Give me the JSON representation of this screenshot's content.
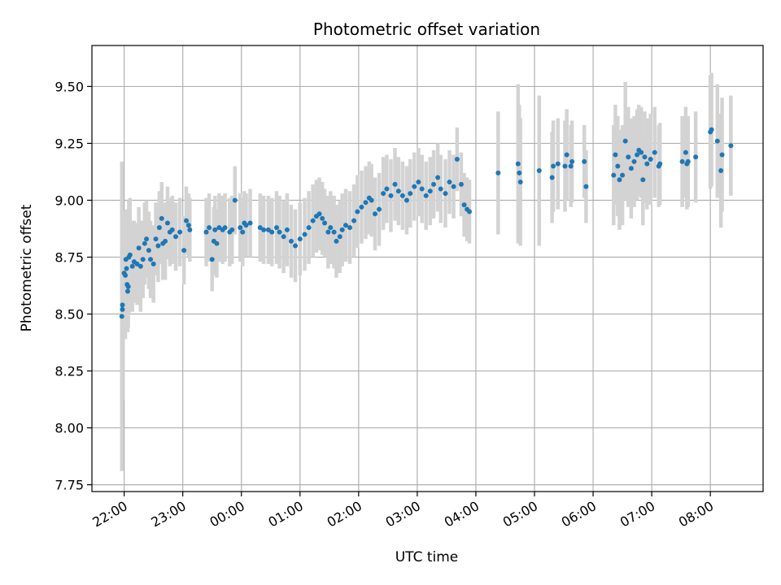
{
  "chart_data": {
    "type": "scatter",
    "title": "Photometric offset variation",
    "xlabel": "UTC time",
    "ylabel": "Photometric offset",
    "x_unit": "hours relative to 00:00 UTC",
    "xlim": [
      -2.55,
      8.9
    ],
    "ylim": [
      7.72,
      9.68
    ],
    "x_ticks": [
      -2,
      -1,
      0,
      1,
      2,
      3,
      4,
      5,
      6,
      7,
      8
    ],
    "x_tick_labels": [
      "22:00",
      "23:00",
      "00:00",
      "01:00",
      "02:00",
      "03:00",
      "04:00",
      "05:00",
      "06:00",
      "07:00",
      "08:00"
    ],
    "y_ticks": [
      7.75,
      8.0,
      8.25,
      8.5,
      8.75,
      9.0,
      9.25,
      9.5
    ],
    "y_tick_labels": [
      "7.75",
      "8.00",
      "8.25",
      "8.50",
      "8.75",
      "9.00",
      "9.25",
      "9.50"
    ],
    "grid": true,
    "colors": {
      "points": "#1f77b4",
      "error_bars": "#d3d3d3",
      "grid": "#b0b0b0"
    },
    "series": [
      {
        "points": [
          [
            -2.04,
            8.49,
            0.68
          ],
          [
            -2.03,
            8.52,
            0.4
          ],
          [
            -2.03,
            8.54,
            0.3
          ],
          [
            -2.0,
            8.68,
            0.25
          ],
          [
            -1.98,
            8.67,
            0.28
          ],
          [
            -1.97,
            8.74,
            0.22
          ],
          [
            -1.96,
            8.7,
            0.25
          ],
          [
            -1.95,
            8.63,
            0.2
          ],
          [
            -1.94,
            8.6,
            0.18
          ],
          [
            -1.93,
            8.62,
            0.18
          ],
          [
            -1.92,
            8.75,
            0.25
          ],
          [
            -1.9,
            8.76,
            0.25
          ],
          [
            -1.86,
            8.71,
            0.2
          ],
          [
            -1.83,
            8.73,
            0.18
          ],
          [
            -1.78,
            8.72,
            0.18
          ],
          [
            -1.75,
            8.79,
            0.18
          ],
          [
            -1.72,
            8.71,
            0.2
          ],
          [
            -1.68,
            8.74,
            0.17
          ],
          [
            -1.65,
            8.81,
            0.18
          ],
          [
            -1.62,
            8.83,
            0.17
          ],
          [
            -1.58,
            8.78,
            0.17
          ],
          [
            -1.55,
            8.74,
            0.17
          ],
          [
            -1.5,
            8.72,
            0.17
          ],
          [
            -1.46,
            8.83,
            0.16
          ],
          [
            -1.42,
            8.8,
            0.16
          ],
          [
            -1.4,
            8.88,
            0.16
          ],
          [
            -1.36,
            8.92,
            0.16
          ],
          [
            -1.34,
            8.81,
            0.16
          ],
          [
            -1.3,
            8.82,
            0.17
          ],
          [
            -1.26,
            8.9,
            0.16
          ],
          [
            -1.22,
            8.86,
            0.15
          ],
          [
            -1.18,
            8.87,
            0.15
          ],
          [
            -1.12,
            8.84,
            0.15
          ],
          [
            -1.05,
            8.86,
            0.15
          ],
          [
            -0.98,
            8.78,
            0.15
          ],
          [
            -0.94,
            8.91,
            0.15
          ],
          [
            -0.9,
            8.89,
            0.14
          ],
          [
            -0.88,
            8.87,
            0.14
          ],
          [
            -0.6,
            8.86,
            0.15
          ],
          [
            -0.55,
            8.88,
            0.15
          ],
          [
            -0.5,
            8.74,
            0.14
          ],
          [
            -0.47,
            8.82,
            0.15
          ],
          [
            -0.45,
            8.87,
            0.15
          ],
          [
            -0.42,
            8.81,
            0.15
          ],
          [
            -0.38,
            8.88,
            0.15
          ],
          [
            -0.32,
            8.87,
            0.15
          ],
          [
            -0.28,
            8.88,
            0.15
          ],
          [
            -0.2,
            8.86,
            0.15
          ],
          [
            -0.16,
            8.87,
            0.15
          ],
          [
            -0.11,
            9.0,
            0.15
          ],
          [
            -0.02,
            8.88,
            0.15
          ],
          [
            0.02,
            8.86,
            0.15
          ],
          [
            0.05,
            8.9,
            0.14
          ],
          [
            0.08,
            8.89,
            0.14
          ],
          [
            0.15,
            8.9,
            0.15
          ],
          [
            0.32,
            8.88,
            0.15
          ],
          [
            0.38,
            8.87,
            0.15
          ],
          [
            0.46,
            8.87,
            0.15
          ],
          [
            0.52,
            8.86,
            0.15
          ],
          [
            0.6,
            8.88,
            0.16
          ],
          [
            0.65,
            8.86,
            0.16
          ],
          [
            0.72,
            8.84,
            0.16
          ],
          [
            0.78,
            8.87,
            0.16
          ],
          [
            0.85,
            8.82,
            0.16
          ],
          [
            0.92,
            8.8,
            0.16
          ],
          [
            1.0,
            8.83,
            0.16
          ],
          [
            1.08,
            8.85,
            0.16
          ],
          [
            1.15,
            8.88,
            0.16
          ],
          [
            1.22,
            8.91,
            0.16
          ],
          [
            1.28,
            8.93,
            0.16
          ],
          [
            1.33,
            8.94,
            0.16
          ],
          [
            1.38,
            8.92,
            0.16
          ],
          [
            1.42,
            8.9,
            0.15
          ],
          [
            1.48,
            8.86,
            0.16
          ],
          [
            1.52,
            8.88,
            0.16
          ],
          [
            1.58,
            8.86,
            0.16
          ],
          [
            1.62,
            8.82,
            0.16
          ],
          [
            1.68,
            8.84,
            0.16
          ],
          [
            1.72,
            8.87,
            0.16
          ],
          [
            1.78,
            8.89,
            0.16
          ],
          [
            1.85,
            8.88,
            0.16
          ],
          [
            1.92,
            8.91,
            0.16
          ],
          [
            1.98,
            8.95,
            0.16
          ],
          [
            2.05,
            8.97,
            0.16
          ],
          [
            2.12,
            8.99,
            0.16
          ],
          [
            2.18,
            9.01,
            0.16
          ],
          [
            2.22,
            9.0,
            0.16
          ],
          [
            2.28,
            8.94,
            0.16
          ],
          [
            2.35,
            8.96,
            0.16
          ],
          [
            2.42,
            9.03,
            0.16
          ],
          [
            2.48,
            9.05,
            0.15
          ],
          [
            2.55,
            9.02,
            0.16
          ],
          [
            2.62,
            9.07,
            0.16
          ],
          [
            2.68,
            9.04,
            0.15
          ],
          [
            2.75,
            9.02,
            0.15
          ],
          [
            2.82,
            9.0,
            0.15
          ],
          [
            2.88,
            9.03,
            0.15
          ],
          [
            2.95,
            9.06,
            0.15
          ],
          [
            3.02,
            9.08,
            0.15
          ],
          [
            3.08,
            9.05,
            0.15
          ],
          [
            3.15,
            9.02,
            0.15
          ],
          [
            3.22,
            9.04,
            0.15
          ],
          [
            3.28,
            9.07,
            0.15
          ],
          [
            3.35,
            9.1,
            0.15
          ],
          [
            3.4,
            9.05,
            0.15
          ],
          [
            3.48,
            9.03,
            0.15
          ],
          [
            3.55,
            9.08,
            0.14
          ],
          [
            3.62,
            9.06,
            0.14
          ],
          [
            3.68,
            9.18,
            0.14
          ],
          [
            3.75,
            9.07,
            0.14
          ],
          [
            3.8,
            8.98,
            0.14
          ],
          [
            3.85,
            8.96,
            0.14
          ],
          [
            3.89,
            8.95,
            0.14
          ],
          [
            4.38,
            9.12,
            0.27
          ],
          [
            4.72,
            9.16,
            0.35
          ],
          [
            4.74,
            9.12,
            0.3
          ],
          [
            4.76,
            9.08,
            0.28
          ],
          [
            5.08,
            9.13,
            0.33
          ],
          [
            5.3,
            9.1,
            0.2
          ],
          [
            5.32,
            9.15,
            0.2
          ],
          [
            5.4,
            9.16,
            0.2
          ],
          [
            5.52,
            9.15,
            0.2
          ],
          [
            5.55,
            9.2,
            0.2
          ],
          [
            5.62,
            9.15,
            0.18
          ],
          [
            5.64,
            9.17,
            0.18
          ],
          [
            5.85,
            9.17,
            0.16
          ],
          [
            5.88,
            9.06,
            0.16
          ],
          [
            6.35,
            9.11,
            0.22
          ],
          [
            6.38,
            9.2,
            0.22
          ],
          [
            6.42,
            9.15,
            0.22
          ],
          [
            6.45,
            9.09,
            0.22
          ],
          [
            6.5,
            9.11,
            0.22
          ],
          [
            6.55,
            9.26,
            0.26
          ],
          [
            6.6,
            9.19,
            0.22
          ],
          [
            6.65,
            9.14,
            0.22
          ],
          [
            6.7,
            9.17,
            0.2
          ],
          [
            6.75,
            9.2,
            0.2
          ],
          [
            6.78,
            9.22,
            0.2
          ],
          [
            6.82,
            9.21,
            0.2
          ],
          [
            6.85,
            9.09,
            0.2
          ],
          [
            6.88,
            9.19,
            0.2
          ],
          [
            6.92,
            9.16,
            0.2
          ],
          [
            6.98,
            9.18,
            0.2
          ],
          [
            7.05,
            9.21,
            0.2
          ],
          [
            7.12,
            9.15,
            0.18
          ],
          [
            7.14,
            9.16,
            0.18
          ],
          [
            7.52,
            9.17,
            0.2
          ],
          [
            7.58,
            9.21,
            0.2
          ],
          [
            7.6,
            9.16,
            0.2
          ],
          [
            7.62,
            9.17,
            0.2
          ],
          [
            7.75,
            9.19,
            0.2
          ],
          [
            8.0,
            9.3,
            0.25
          ],
          [
            8.02,
            9.31,
            0.25
          ],
          [
            8.12,
            9.26,
            0.25
          ],
          [
            8.18,
            9.13,
            0.25
          ],
          [
            8.2,
            9.2,
            0.25
          ],
          [
            8.35,
            9.24,
            0.22
          ]
        ]
      }
    ]
  }
}
